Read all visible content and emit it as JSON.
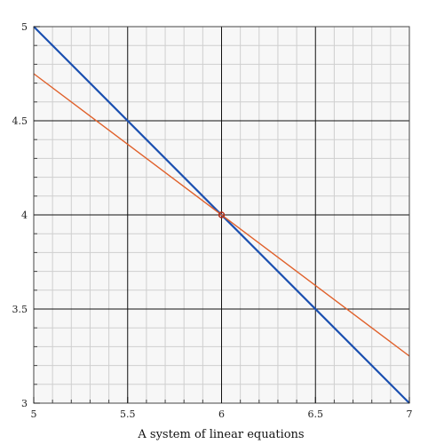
{
  "chart_data": {
    "type": "line",
    "title": "",
    "xlabel": "A system of linear equations",
    "ylabel": "",
    "xlim": [
      5,
      7
    ],
    "ylim": [
      3,
      5
    ],
    "x_major_ticks": [
      5,
      5.5,
      6,
      6.5,
      7
    ],
    "y_major_ticks": [
      3,
      3.5,
      4,
      4.5,
      5
    ],
    "x_tick_labels": [
      "5",
      "5.5",
      "6",
      "6.5",
      "7"
    ],
    "y_tick_labels": [
      "3",
      "3.5",
      "4",
      "4.5",
      "5"
    ],
    "minor_step": 0.1,
    "grid": true,
    "series": [
      {
        "color": "#1a4fb0",
        "x": [
          5,
          7
        ],
        "y": [
          5,
          3
        ]
      },
      {
        "color": "#e0602a",
        "x": [
          5,
          7
        ],
        "y": [
          4.75,
          3.25
        ]
      }
    ],
    "intersection": {
      "x": 6,
      "y": 4,
      "color": "#b5301a"
    }
  }
}
